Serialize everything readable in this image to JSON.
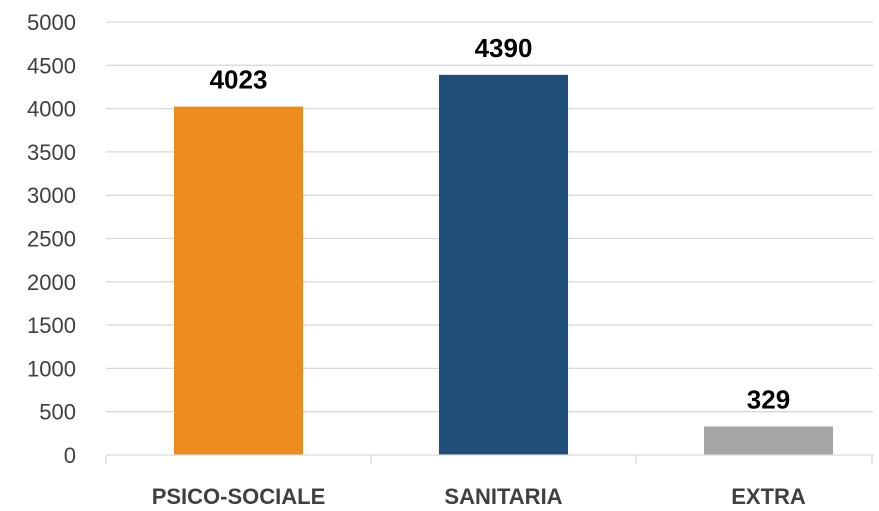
{
  "chart_data": {
    "type": "bar",
    "categories": [
      "PSICO-SOCIALE",
      "SANITARIA",
      "EXTRA"
    ],
    "values": [
      4023,
      4390,
      329
    ],
    "data_labels": [
      "4023",
      "4390",
      "329"
    ],
    "colors": [
      "#ED8B1C",
      "#1F4E79",
      "#A5A5A5"
    ],
    "title": "",
    "xlabel": "",
    "ylabel": "",
    "ylim": [
      0,
      5000
    ],
    "yticks": [
      0,
      500,
      1000,
      1500,
      2000,
      2500,
      3000,
      3500,
      4000,
      4500,
      5000
    ],
    "grid": true,
    "gridline_color": "#D9D9D9",
    "legend": "none"
  }
}
